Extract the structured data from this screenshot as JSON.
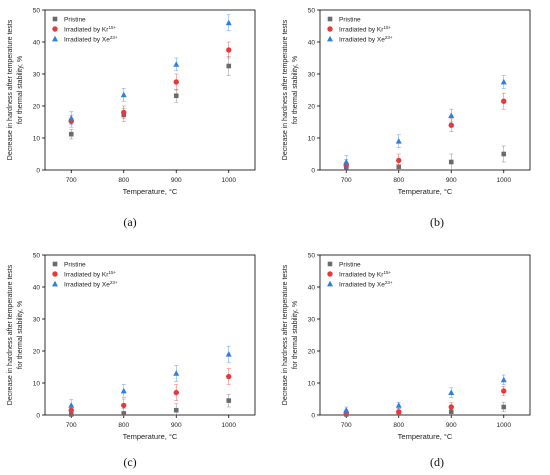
{
  "chart_data": [
    {
      "type": "scatter",
      "caption": "(a)",
      "xlabel": "Temperature, °C",
      "ylabel_line1": "Decrease in hardness after temperature tests",
      "ylabel_line2": "for thermal stability, %",
      "ylim": [
        0,
        50
      ],
      "yticks": [
        0,
        10,
        20,
        30,
        40,
        50
      ],
      "xticks": [
        700,
        800,
        900,
        1000
      ],
      "legend_position": "top-left",
      "series": [
        {
          "name": "Pristine",
          "base": "Pristine",
          "sup": "",
          "marker": "square",
          "color": "#6b6b6b",
          "x": [
            700,
            800,
            900,
            1000
          ],
          "y": [
            11.2,
            17.2,
            23.2,
            32.5
          ],
          "err": [
            1.5,
            2.0,
            2.0,
            3.0
          ]
        },
        {
          "name": "Irradiated by Kr15+",
          "base": "Irradiated by Kr",
          "sup": "15+",
          "marker": "circle",
          "color": "#e8393a",
          "x": [
            700,
            800,
            900,
            1000
          ],
          "y": [
            15.2,
            18.0,
            27.5,
            37.5
          ],
          "err": [
            1.8,
            2.0,
            2.5,
            2.5
          ]
        },
        {
          "name": "Irradiated by Xe23+",
          "base": "Irradiated by Xe",
          "sup": "23+",
          "marker": "triangle",
          "color": "#2f7fe0",
          "x": [
            700,
            800,
            900,
            1000
          ],
          "y": [
            16.2,
            23.5,
            33.0,
            46.0
          ],
          "err": [
            2.0,
            2.0,
            2.0,
            2.5
          ]
        }
      ]
    },
    {
      "type": "scatter",
      "caption": "(b)",
      "xlabel": "Temperature, °C",
      "ylabel_line1": "Decrease in hardness after temperature tests",
      "ylabel_line2": "for thermal stability, %",
      "ylim": [
        0,
        50
      ],
      "yticks": [
        0,
        10,
        20,
        30,
        40,
        50
      ],
      "xticks": [
        700,
        800,
        900,
        1000
      ],
      "legend_position": "top-left",
      "series": [
        {
          "name": "Pristine",
          "base": "Pristine",
          "sup": "",
          "marker": "square",
          "color": "#6b6b6b",
          "x": [
            700,
            800,
            900,
            1000
          ],
          "y": [
            0.8,
            1.0,
            2.5,
            5.0
          ],
          "err": [
            1.5,
            1.8,
            2.5,
            2.5
          ]
        },
        {
          "name": "Irradiated by Kr15+",
          "base": "Irradiated by Kr",
          "sup": "15+",
          "marker": "circle",
          "color": "#e8393a",
          "x": [
            700,
            800,
            900,
            1000
          ],
          "y": [
            1.5,
            3.0,
            14.0,
            21.5
          ],
          "err": [
            1.8,
            2.0,
            2.0,
            2.5
          ]
        },
        {
          "name": "Irradiated by Xe23+",
          "base": "Irradiated by Xe",
          "sup": "23+",
          "marker": "triangle",
          "color": "#2f7fe0",
          "x": [
            700,
            800,
            900,
            1000
          ],
          "y": [
            2.5,
            9.0,
            17.0,
            27.5
          ],
          "err": [
            2.0,
            2.0,
            2.0,
            2.0
          ]
        }
      ]
    },
    {
      "type": "scatter",
      "caption": "(c)",
      "xlabel": "Temperature, °C",
      "ylabel_line1": "Decrease in hardness after temperature tests",
      "ylabel_line2": "for thermal stability, %",
      "ylim": [
        0,
        50
      ],
      "yticks": [
        0,
        10,
        20,
        30,
        40,
        50
      ],
      "xticks": [
        700,
        800,
        900,
        1000
      ],
      "legend_position": "top-left",
      "series": [
        {
          "name": "Pristine",
          "base": "Pristine",
          "sup": "",
          "marker": "square",
          "color": "#6b6b6b",
          "x": [
            700,
            800,
            900,
            1000
          ],
          "y": [
            0.2,
            0.5,
            1.5,
            4.5
          ],
          "err": [
            1.2,
            1.5,
            2.0,
            2.0
          ]
        },
        {
          "name": "Irradiated by Kr15+",
          "base": "Irradiated by Kr",
          "sup": "15+",
          "marker": "circle",
          "color": "#e8393a",
          "x": [
            700,
            800,
            900,
            1000
          ],
          "y": [
            1.5,
            3.0,
            7.0,
            12.0
          ],
          "err": [
            1.5,
            2.0,
            2.5,
            2.5
          ]
        },
        {
          "name": "Irradiated by Xe23+",
          "base": "Irradiated by Xe",
          "sup": "23+",
          "marker": "triangle",
          "color": "#2f7fe0",
          "x": [
            700,
            800,
            900,
            1000
          ],
          "y": [
            3.0,
            7.5,
            13.0,
            19.0
          ],
          "err": [
            1.8,
            2.0,
            2.5,
            2.5
          ]
        }
      ]
    },
    {
      "type": "scatter",
      "caption": "(d)",
      "xlabel": "Temperature, °C",
      "ylabel_line1": "Decrease in hardness after temperature tests",
      "ylabel_line2": "for thermal stability, %",
      "ylim": [
        0,
        50
      ],
      "yticks": [
        0,
        10,
        20,
        30,
        40,
        50
      ],
      "xticks": [
        700,
        800,
        900,
        1000
      ],
      "legend_position": "top-left",
      "series": [
        {
          "name": "Pristine",
          "base": "Pristine",
          "sup": "",
          "marker": "square",
          "color": "#6b6b6b",
          "x": [
            700,
            800,
            900,
            1000
          ],
          "y": [
            0.2,
            0.5,
            1.0,
            2.5
          ],
          "err": [
            1.0,
            1.0,
            1.5,
            1.5
          ]
        },
        {
          "name": "Irradiated by Kr15+",
          "base": "Irradiated by Kr",
          "sup": "15+",
          "marker": "circle",
          "color": "#e8393a",
          "x": [
            700,
            800,
            900,
            1000
          ],
          "y": [
            0.5,
            1.0,
            2.5,
            7.5
          ],
          "err": [
            1.0,
            1.0,
            1.5,
            1.5
          ]
        },
        {
          "name": "Irradiated by Xe23+",
          "base": "Irradiated by Xe",
          "sup": "23+",
          "marker": "triangle",
          "color": "#2f7fe0",
          "x": [
            700,
            800,
            900,
            1000
          ],
          "y": [
            1.5,
            3.0,
            7.0,
            11.0
          ],
          "err": [
            1.0,
            1.0,
            1.5,
            1.5
          ]
        }
      ]
    }
  ]
}
